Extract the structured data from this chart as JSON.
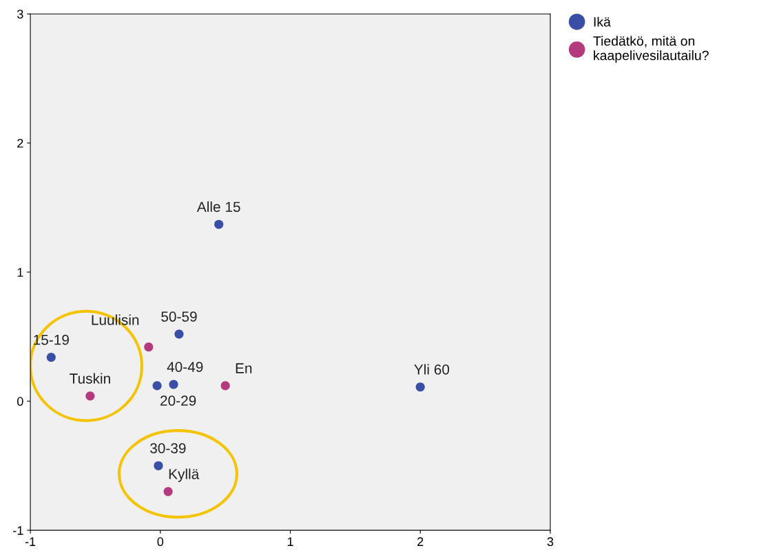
{
  "chart_data": {
    "type": "scatter",
    "series": [
      {
        "name": "Ikä",
        "color": "#3b4ea6",
        "x": [
          0.45,
          0.144,
          -0.84,
          0.102,
          -0.025,
          2.0,
          -0.015
        ],
        "values": [
          1.37,
          0.52,
          0.34,
          0.13,
          0.12,
          0.11,
          -0.5
        ]
      },
      {
        "name": "Tiedätkö, mitä on\nkaapelivesilautailu?",
        "color": "#b33a7c",
        "x": [
          -0.09,
          -0.54,
          0.5,
          0.06
        ],
        "values": [
          0.42,
          0.04,
          0.12,
          -0.7
        ]
      }
    ],
    "annotations": [
      {
        "text": "Alle 15",
        "x": 0.45,
        "y": 1.37
      },
      {
        "text": "50-59",
        "x": 0.144,
        "y": 0.52
      },
      {
        "text": "15-19",
        "x": -0.84,
        "y": 0.34
      },
      {
        "text": "40-49",
        "x": 0.102,
        "y": 0.13
      },
      {
        "text": "20-29",
        "x": -0.025,
        "y": 0.12
      },
      {
        "text": "Yli 60",
        "x": 2.0,
        "y": 0.11
      },
      {
        "text": "30-39",
        "x": -0.015,
        "y": -0.5
      },
      {
        "text": "Luulisin",
        "x": -0.09,
        "y": 0.42
      },
      {
        "text": "Tuskin",
        "x": -0.54,
        "y": 0.04
      },
      {
        "text": "En",
        "x": 0.5,
        "y": 0.12
      },
      {
        "text": "Kyllä",
        "x": 0.06,
        "y": -0.7
      }
    ],
    "xlim": [
      -1,
      3
    ],
    "ylim": [
      -1,
      3
    ],
    "xticks": [
      -1,
      0,
      1,
      2,
      3
    ],
    "yticks": [
      -1,
      0,
      1,
      2,
      3
    ],
    "marker": "circle",
    "grid": false,
    "legend": "top right"
  }
}
